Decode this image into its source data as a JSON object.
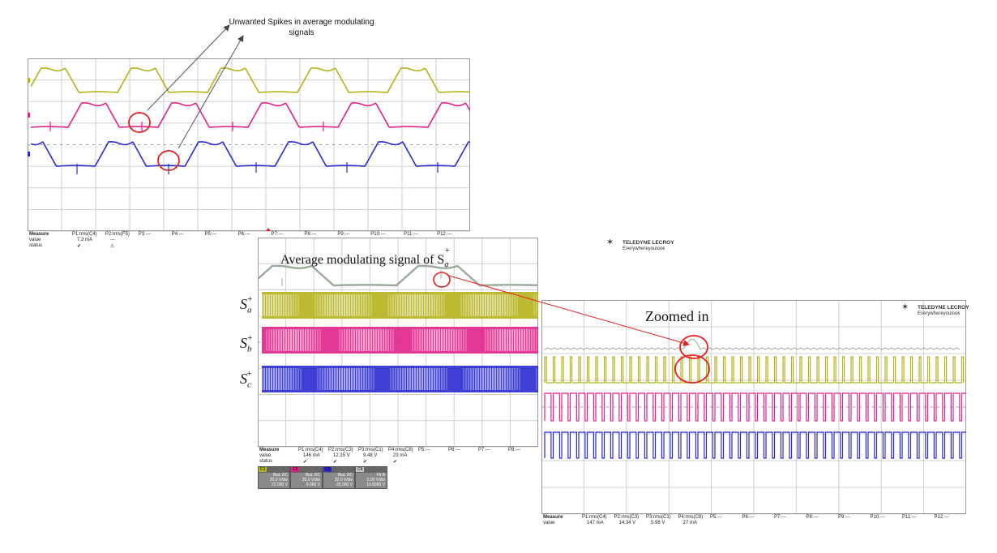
{
  "annotations": {
    "spikes_note": "Unwanted Spikes in average modulating signals",
    "avg_signal": "Average modulating signal of S",
    "zoomed": "Zoomed in",
    "sa_label": "S",
    "sb_label": "S",
    "sc_label": "S",
    "sup": "+",
    "sub_a": "a",
    "sub_b": "b",
    "sub_c": "c"
  },
  "colors": {
    "ch1": "#b5b21a",
    "ch2": "#e0228a",
    "ch3": "#2a2ad0",
    "avg": "#9aaa9a",
    "marker": "#e52020",
    "grid": "#cfcfcf"
  },
  "brand": {
    "name": "TELEDYNE LECROY",
    "tagline": "Everywhereyoulook"
  },
  "scope1": {
    "headers": [
      "Measure",
      "P1:rms(C4)",
      "P2:rms(F5)",
      "P3:---",
      "P4:---",
      "P5:---",
      "P6:---",
      "P7:---",
      "P8:---",
      "P9:---",
      "P10:---",
      "P11:---",
      "P12:---"
    ],
    "row_value": [
      "value",
      "7.3 mA",
      "---"
    ],
    "row_status": [
      "status",
      "✔",
      "⚠"
    ]
  },
  "scope2": {
    "headers": [
      "Measure",
      "P1:rms(C4)",
      "P2:rms(C3)",
      "P3:rms(C1)",
      "P4:rms(C8)",
      "P5:---",
      "P6:---",
      "P7:---",
      "P8:---"
    ],
    "row_value": [
      "value",
      "146 mA",
      "12.15 V",
      "9.48 V",
      "23 mA"
    ],
    "row_status": [
      "status",
      "✔",
      "✔",
      "✔",
      "✔"
    ],
    "channels": [
      {
        "name": "C1",
        "lines": [
          "BwL DC",
          "20.0 V/div",
          "22.000 V"
        ]
      },
      {
        "name": "C2",
        "lines": [
          "BwL DC",
          "20.0 V/div",
          "0.000 V"
        ]
      },
      {
        "name": "C3",
        "lines": [
          "BwL DC",
          "20.0 V/div",
          "-35.000 V"
        ]
      },
      {
        "name": "C8",
        "lines": [
          "F8 B",
          "5.00 V/div",
          "10.6000 V"
        ]
      }
    ]
  },
  "scope3": {
    "headers": [
      "Measure",
      "P1:rms(C4)",
      "P2:rms(C3)",
      "P3:rms(C1)",
      "P4:rms(C8)",
      "P5:---",
      "P6:---",
      "P7:---",
      "P8:---",
      "P9:---",
      "P10:---",
      "P11:---",
      "P12:---"
    ],
    "row_value": [
      "value",
      "147 mA",
      "14.34 V",
      "5.98 V",
      "27 mA"
    ]
  }
}
